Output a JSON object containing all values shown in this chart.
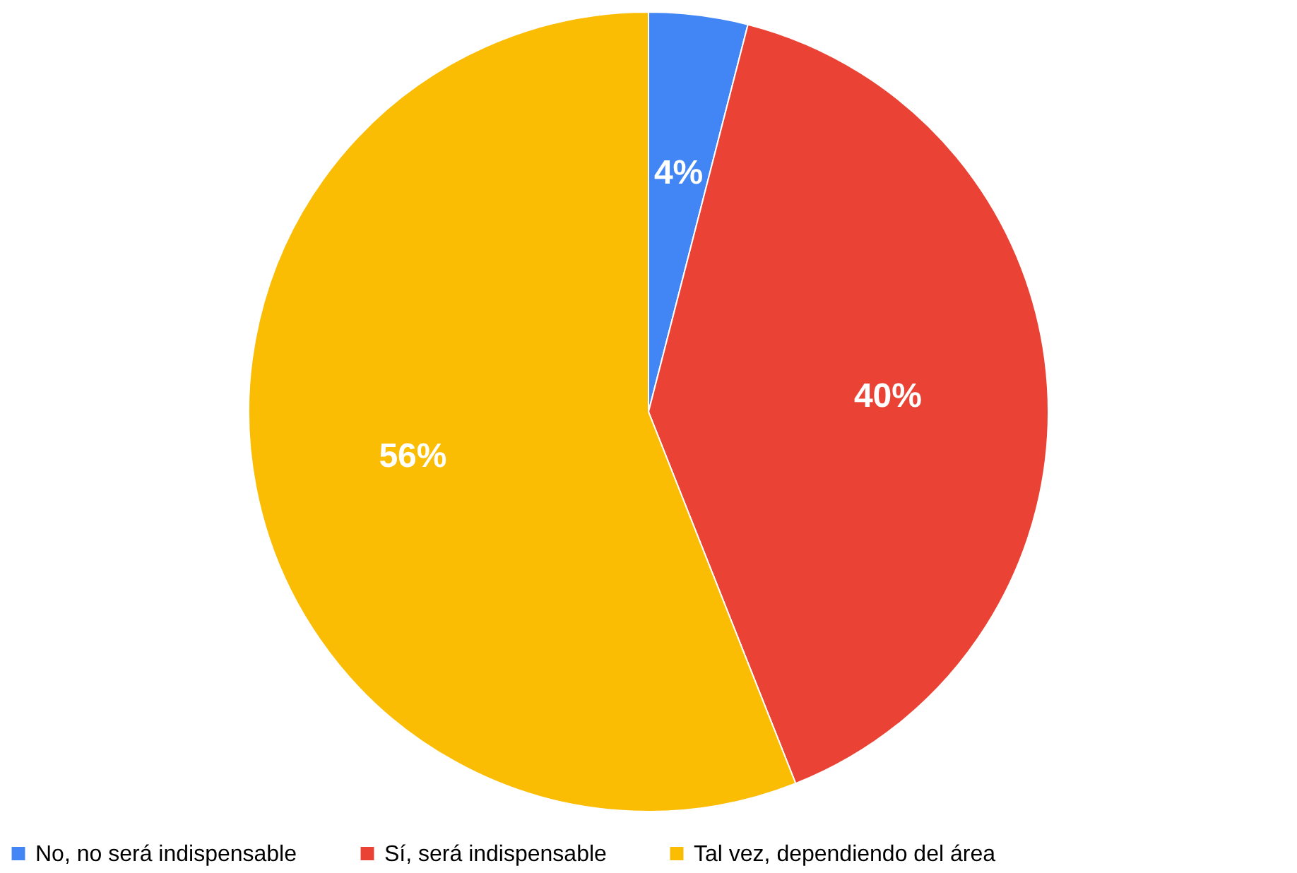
{
  "chart_data": {
    "type": "pie",
    "categories": [
      "No, no será indispensable",
      "Sí, será indispensable",
      "Tal vez, dependiendo del área"
    ],
    "values": [
      4,
      40,
      56
    ],
    "colors": [
      "#4285f4",
      "#ea4335",
      "#fbbc04"
    ],
    "value_labels": [
      "4%",
      "40%",
      "56%"
    ],
    "legend": "bottom"
  }
}
